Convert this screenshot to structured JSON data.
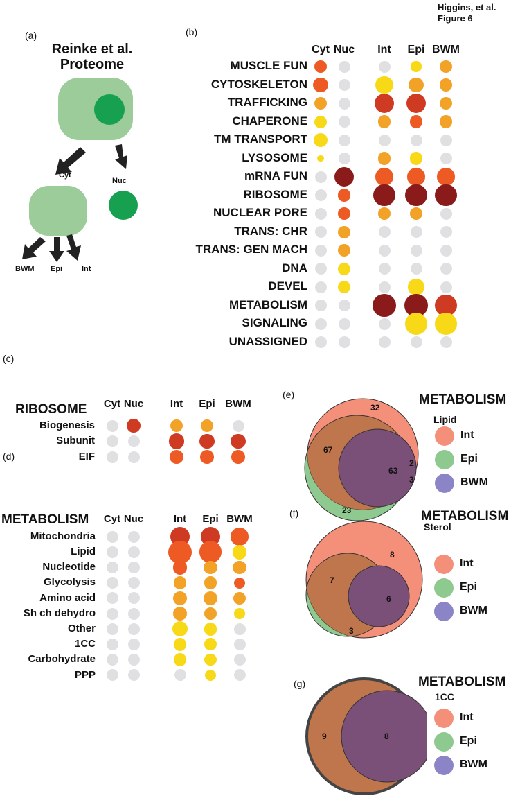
{
  "header": {
    "author": "Higgins, et al.",
    "figure": "Figure 6"
  },
  "colors": {
    "empty": "#e0e0e2",
    "cyt_green": "#9ccc9a",
    "nuc_green": "#16a050",
    "int": "#f4907a",
    "epi": "#8ec98f",
    "bwm": "#8b84c6",
    "heat": [
      "#f7d917",
      "#f2a227",
      "#ee5a24",
      "#cf3a22",
      "#8b1a1a"
    ]
  },
  "panel_a": {
    "label": "(a)",
    "title_line1": "Reinke et al.",
    "title_line2": "Proteome",
    "cyt_label": "Cyt",
    "nuc_label": "Nuc",
    "bwm_label": "BWM",
    "epi_label": "Epi",
    "int_label": "Int"
  },
  "panel_b": {
    "label": "(b)",
    "columns": [
      "Cyt",
      "Nuc",
      "Int",
      "Epi",
      "BWM"
    ],
    "rows": [
      {
        "label": "MUSCLE FUN",
        "cells": [
          [
            2,
            1.0
          ],
          [
            0,
            0
          ],
          [
            0,
            0
          ],
          [
            0,
            0.85
          ],
          [
            1,
            1.0
          ]
        ]
      },
      {
        "label": "CYTOSKELETON",
        "cells": [
          [
            2,
            1.2
          ],
          [
            0,
            0
          ],
          [
            0,
            1.4
          ],
          [
            1,
            1.2
          ],
          [
            1,
            1.05
          ]
        ]
      },
      {
        "label": "TRAFFICKING",
        "cells": [
          [
            1,
            1.0
          ],
          [
            0,
            0
          ],
          [
            3,
            1.6
          ],
          [
            3,
            1.6
          ],
          [
            1,
            1.05
          ]
        ]
      },
      {
        "label": "CHAPERONE",
        "cells": [
          [
            0,
            1.0
          ],
          [
            0,
            0
          ],
          [
            1,
            1.05
          ],
          [
            2,
            1.05
          ],
          [
            1,
            1.05
          ]
        ]
      },
      {
        "label": "TM TRANSPORT",
        "cells": [
          [
            0,
            1.15
          ],
          [
            0,
            0
          ],
          [
            0,
            0
          ],
          [
            0,
            0
          ],
          [
            0,
            0
          ]
        ]
      },
      {
        "label": "LYSOSOME",
        "cells": [
          [
            0,
            0.55
          ],
          [
            0,
            0
          ],
          [
            1,
            1.05
          ],
          [
            0,
            1.05
          ],
          [
            0,
            0
          ]
        ]
      },
      {
        "label": "mRNA FUN",
        "cells": [
          [
            0,
            0
          ],
          [
            4,
            1.6
          ],
          [
            2,
            1.4
          ],
          [
            2,
            1.4
          ],
          [
            2,
            1.4
          ]
        ]
      },
      {
        "label": "RIBOSOME",
        "cells": [
          [
            0,
            0
          ],
          [
            2,
            1.05
          ],
          [
            4,
            1.75
          ],
          [
            4,
            1.75
          ],
          [
            4,
            1.75
          ]
        ]
      },
      {
        "label": "NUCLEAR PORE",
        "cells": [
          [
            0,
            0
          ],
          [
            2,
            1.0
          ],
          [
            1,
            1.0
          ],
          [
            1,
            1.0
          ],
          [
            0,
            0
          ]
        ]
      },
      {
        "label": "TRANS: CHR",
        "cells": [
          [
            0,
            0
          ],
          [
            1,
            1.0
          ],
          [
            0,
            0
          ],
          [
            0,
            0
          ],
          [
            0,
            0
          ]
        ]
      },
      {
        "label": "TRANS: GEN MACH",
        "cells": [
          [
            0,
            0
          ],
          [
            1,
            1.0
          ],
          [
            0,
            0
          ],
          [
            0,
            0
          ],
          [
            0,
            0
          ]
        ]
      },
      {
        "label": "DNA",
        "cells": [
          [
            0,
            0
          ],
          [
            0,
            1.0
          ],
          [
            0,
            0
          ],
          [
            0,
            0
          ],
          [
            0,
            0
          ]
        ]
      },
      {
        "label": "DEVEL",
        "cells": [
          [
            0,
            0
          ],
          [
            0,
            1.0
          ],
          [
            0,
            0
          ],
          [
            0,
            1.3
          ],
          [
            0,
            0
          ]
        ]
      },
      {
        "label": "METABOLISM",
        "cells": [
          [
            0,
            0
          ],
          [
            0,
            0
          ],
          [
            4,
            1.85
          ],
          [
            4,
            1.85
          ],
          [
            3,
            1.75
          ]
        ]
      },
      {
        "label": "SIGNALING",
        "cells": [
          [
            0,
            0
          ],
          [
            0,
            0
          ],
          [
            0,
            0
          ],
          [
            0,
            1.75
          ],
          [
            0,
            1.75
          ]
        ]
      },
      {
        "label": "UNASSIGNED",
        "cells": [
          [
            0,
            0
          ],
          [
            0,
            0
          ],
          [
            0,
            0
          ],
          [
            0,
            0
          ],
          [
            0,
            0
          ]
        ]
      }
    ]
  },
  "panel_c": {
    "label": "(c)",
    "title": "RIBOSOME",
    "columns": [
      "Cyt",
      "Nuc",
      "Int",
      "Epi",
      "BWM"
    ],
    "rows": [
      {
        "label": "Biogenesis",
        "cells": [
          [
            0,
            0
          ],
          [
            3,
            1.1
          ],
          [
            1,
            1.05
          ],
          [
            1,
            1.05
          ],
          [
            0,
            0
          ]
        ]
      },
      {
        "label": "Subunit",
        "cells": [
          [
            0,
            0
          ],
          [
            0,
            0
          ],
          [
            3,
            1.25
          ],
          [
            3,
            1.2
          ],
          [
            3,
            1.2
          ]
        ]
      },
      {
        "label": "EIF",
        "cells": [
          [
            0,
            0
          ],
          [
            0,
            0
          ],
          [
            2,
            1.1
          ],
          [
            2,
            1.1
          ],
          [
            2,
            1.1
          ]
        ]
      }
    ]
  },
  "panel_d": {
    "label": "(d)",
    "title": "METABOLISM",
    "columns": [
      "Cyt",
      "Nuc",
      "Int",
      "Epi",
      "BWM"
    ],
    "rows": [
      {
        "label": "Mitochondria",
        "cells": [
          [
            0,
            0
          ],
          [
            0,
            0
          ],
          [
            3,
            1.6
          ],
          [
            3,
            1.6
          ],
          [
            2,
            1.4
          ]
        ]
      },
      {
        "label": "Lipid",
        "cells": [
          [
            0,
            0
          ],
          [
            0,
            0
          ],
          [
            2,
            1.85
          ],
          [
            2,
            1.75
          ],
          [
            0,
            1.15
          ]
        ]
      },
      {
        "label": "Nucleotide",
        "cells": [
          [
            0,
            0
          ],
          [
            0,
            0
          ],
          [
            2,
            1.15
          ],
          [
            1,
            1.1
          ],
          [
            1,
            1.1
          ]
        ]
      },
      {
        "label": "Glycolysis",
        "cells": [
          [
            0,
            0
          ],
          [
            0,
            0
          ],
          [
            1,
            1.05
          ],
          [
            1,
            1.05
          ],
          [
            2,
            0.9
          ]
        ]
      },
      {
        "label": "Amino acid",
        "cells": [
          [
            0,
            0
          ],
          [
            0,
            0
          ],
          [
            1,
            1.1
          ],
          [
            1,
            1.1
          ],
          [
            1,
            1.0
          ]
        ]
      },
      {
        "label": "Sh ch dehydro",
        "cells": [
          [
            0,
            0
          ],
          [
            0,
            0
          ],
          [
            1,
            1.15
          ],
          [
            1,
            1.05
          ],
          [
            0,
            0.9
          ]
        ]
      },
      {
        "label": "Other",
        "cells": [
          [
            0,
            0
          ],
          [
            0,
            0
          ],
          [
            0,
            1.25
          ],
          [
            0,
            1.05
          ],
          [
            0,
            0
          ]
        ]
      },
      {
        "label": "1CC",
        "cells": [
          [
            0,
            0
          ],
          [
            0,
            0
          ],
          [
            0,
            1.05
          ],
          [
            0,
            1.0
          ],
          [
            0,
            0
          ]
        ]
      },
      {
        "label": "Carbohydrate",
        "cells": [
          [
            0,
            0
          ],
          [
            0,
            0
          ],
          [
            0,
            1.05
          ],
          [
            0,
            0.95
          ],
          [
            0,
            0
          ]
        ]
      },
      {
        "label": "PPP",
        "cells": [
          [
            0,
            0
          ],
          [
            0,
            0
          ],
          [
            0,
            0
          ],
          [
            0,
            0.9
          ],
          [
            0,
            0
          ]
        ]
      }
    ]
  },
  "panel_e": {
    "label": "(e)",
    "title": "METABOLISM",
    "subtitle": "Lipid",
    "legend": [
      "Int",
      "Epi",
      "BWM"
    ],
    "numbers": [
      "32",
      "67",
      "63",
      "2",
      "3",
      "23"
    ]
  },
  "panel_f": {
    "label": "(f)",
    "title": "METABOLISM",
    "subtitle": "Sterol",
    "legend": [
      "Int",
      "Epi",
      "BWM"
    ],
    "numbers": [
      "8",
      "7",
      "6",
      "3"
    ]
  },
  "panel_g": {
    "label": "(g)",
    "title": "METABOLISM",
    "subtitle": "1CC",
    "legend": [
      "Int",
      "Epi",
      "BWM"
    ],
    "numbers": [
      "9",
      "8"
    ]
  }
}
